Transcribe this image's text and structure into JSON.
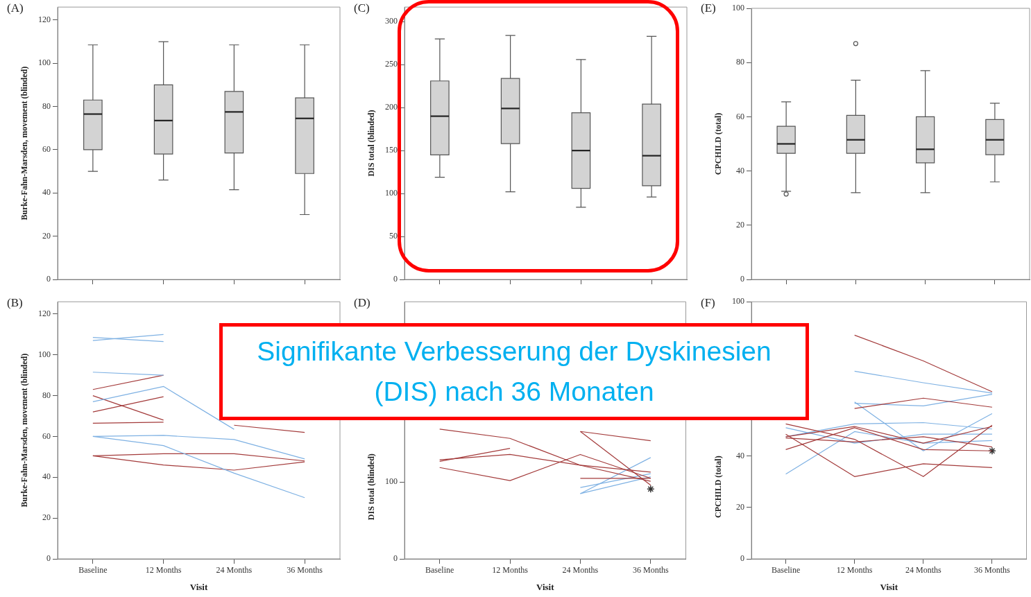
{
  "chart_data": [
    {
      "type": "box",
      "title": "(A)",
      "ylabel": "Burke-Fahn-Marsden, movement (blinded)",
      "categories": [
        null,
        null,
        null,
        null
      ],
      "ylim": [
        0,
        126
      ],
      "yticks": [
        0,
        20,
        40,
        60,
        80,
        100,
        120
      ],
      "tick_labels": "y",
      "series": [
        {
          "color": "#d3d3d3",
          "boxes": [
            {
              "low": 50,
              "q1": 60,
              "median": 76.5,
              "q3": 83,
              "high": 108.5
            },
            {
              "low": 46,
              "q1": 58,
              "median": 73.5,
              "q3": 90,
              "high": 110
            },
            {
              "low": 41.5,
              "q1": 58.5,
              "median": 77.5,
              "q3": 87,
              "high": 108.5
            },
            {
              "low": 30,
              "q1": 49,
              "median": 74.5,
              "q3": 84,
              "high": 108.5
            }
          ]
        }
      ]
    },
    {
      "type": "box",
      "title": "(C)",
      "ylabel": "DIS total (blinded)",
      "categories": [
        null,
        null,
        null,
        null
      ],
      "ylim": [
        0,
        317
      ],
      "yticks": [
        0,
        50,
        100,
        150,
        200,
        250,
        300
      ],
      "tick_labels": "y",
      "series": [
        {
          "color": "#d3d3d3",
          "boxes": [
            {
              "low": 119,
              "q1": 145,
              "median": 190,
              "q3": 231,
              "high": 280
            },
            {
              "low": 102,
              "q1": 158,
              "median": 199,
              "q3": 234,
              "high": 284
            },
            {
              "low": 84,
              "q1": 106,
              "median": 150,
              "q3": 194,
              "high": 256
            },
            {
              "low": 96,
              "q1": 109,
              "median": 144,
              "q3": 204,
              "high": 283
            }
          ]
        }
      ]
    },
    {
      "type": "box",
      "title": "(E)",
      "ylabel": "CPCHILD (total)",
      "categories": [
        null,
        null,
        null,
        null
      ],
      "ylim": [
        0,
        100
      ],
      "yticks": [
        0,
        20,
        40,
        60,
        80,
        100
      ],
      "tick_labels": "y",
      "series": [
        {
          "color": "#d3d3d3",
          "boxes": [
            {
              "low": 32.5,
              "q1": 46.5,
              "median": 50,
              "q3": 56.5,
              "high": 65.5,
              "outliers": [
                31.5
              ]
            },
            {
              "low": 32,
              "q1": 46.5,
              "median": 51.5,
              "q3": 60.5,
              "high": 73.5,
              "outliers": [
                87
              ]
            },
            {
              "low": 32,
              "q1": 43,
              "median": 48,
              "q3": 60,
              "high": 77
            },
            {
              "low": 36,
              "q1": 46,
              "median": 51.5,
              "q3": 59,
              "high": 65
            }
          ]
        }
      ]
    },
    {
      "type": "line",
      "title": "(B)",
      "xlabel": "Visit",
      "ylabel": "Burke-Fahn-Marsden, movement (blinded)",
      "categories": [
        "Baseline",
        "12 Months",
        "24 Months",
        "36 Months"
      ],
      "ylim": [
        0,
        126
      ],
      "yticks": [
        0,
        20,
        40,
        60,
        80,
        100,
        120
      ],
      "series": [
        {
          "color": "#7eb1e3",
          "values": [
            108.5,
            106.5,
            null,
            null
          ]
        },
        {
          "color": "#7eb1e3",
          "values": [
            107,
            110,
            null,
            null
          ]
        },
        {
          "color": "#7eb1e3",
          "values": [
            91.5,
            90,
            null,
            null
          ]
        },
        {
          "color": "#7eb1e3",
          "values": [
            77,
            84.5,
            63.5,
            null
          ]
        },
        {
          "color": "#7eb1e3",
          "values": [
            60,
            60.5,
            58.5,
            49
          ]
        },
        {
          "color": "#7eb1e3",
          "values": [
            60,
            55.5,
            42,
            30
          ]
        },
        {
          "color": "#a33a3a",
          "values": [
            83,
            90,
            null,
            null
          ]
        },
        {
          "color": "#a33a3a",
          "values": [
            80,
            68,
            null,
            null
          ]
        },
        {
          "color": "#a33a3a",
          "values": [
            72,
            79.5,
            null,
            null
          ]
        },
        {
          "color": "#a33a3a",
          "values": [
            66.5,
            67,
            null,
            null
          ]
        },
        {
          "color": "#a33a3a",
          "values": [
            50.5,
            51.5,
            51.5,
            48
          ]
        },
        {
          "color": "#a33a3a",
          "values": [
            50.5,
            46,
            43.5,
            47.5
          ]
        },
        {
          "color": "#a33a3a",
          "values": [
            null,
            null,
            65.5,
            62
          ]
        }
      ]
    },
    {
      "type": "line",
      "title": "(D)",
      "xlabel": "Visit",
      "ylabel": "DIS total (blinded)",
      "categories": [
        "Baseline",
        "12 Months",
        "24 Months",
        "36 Months"
      ],
      "ylim": [
        0,
        335
      ],
      "yticks": [
        0,
        100
      ],
      "annotations": [
        "Signifikante Verbesserung der Dyskinesien (DIS) nach 36 Monaten"
      ],
      "series": [
        {
          "color": "#a33a3a",
          "values": [
            169,
            157,
            122,
            113
          ]
        },
        {
          "color": "#a33a3a",
          "values": [
            129,
            136,
            122,
            101
          ]
        },
        {
          "color": "#a33a3a",
          "values": [
            127,
            144,
            null,
            null
          ]
        },
        {
          "color": "#a33a3a",
          "values": [
            119,
            102,
            136,
            105
          ]
        },
        {
          "color": "#a33a3a",
          "values": [
            null,
            null,
            166,
            154
          ]
        },
        {
          "color": "#a33a3a",
          "values": [
            null,
            null,
            166,
            96
          ]
        },
        {
          "color": "#a33a3a",
          "values": [
            null,
            null,
            105,
            105
          ]
        },
        {
          "color": "#7eb1e3",
          "values": [
            null,
            null,
            85,
            107
          ]
        },
        {
          "color": "#7eb1e3",
          "values": [
            null,
            null,
            93,
            111
          ]
        },
        {
          "color": "#7eb1e3",
          "values": [
            null,
            null,
            85,
            132
          ]
        },
        {
          "type": "scatter",
          "marker": "cross",
          "color": "#333333",
          "x": [
            "36 Months"
          ],
          "values": [
            91
          ]
        }
      ]
    },
    {
      "type": "line",
      "title": "(F)",
      "xlabel": "Visit",
      "ylabel": "CPCHILD (total)",
      "categories": [
        "Baseline",
        "12 Months",
        "24 Months",
        "36 Months"
      ],
      "ylim": [
        0,
        100
      ],
      "yticks": [
        0,
        20,
        40,
        100
      ],
      "series": [
        {
          "color": "#a33a3a",
          "values": [
            null,
            87,
            77,
            65
          ]
        },
        {
          "color": "#a33a3a",
          "values": [
            null,
            58.5,
            62.5,
            59
          ]
        },
        {
          "color": "#a33a3a",
          "values": [
            52.5,
            46.5,
            32,
            52
          ]
        },
        {
          "color": "#a33a3a",
          "values": [
            48.5,
            32,
            37,
            35.5
          ]
        },
        {
          "color": "#a33a3a",
          "values": [
            47.5,
            51.5,
            45,
            51.5
          ]
        },
        {
          "color": "#a33a3a",
          "values": [
            47,
            45.5,
            47.5,
            43.5
          ]
        },
        {
          "color": "#a33a3a",
          "values": [
            42.5,
            51,
            42.5,
            42
          ]
        },
        {
          "color": "#7eb1e3",
          "values": [
            null,
            73,
            68.5,
            64.5
          ]
        },
        {
          "color": "#7eb1e3",
          "values": [
            null,
            60.5,
            59.5,
            64
          ]
        },
        {
          "color": "#7eb1e3",
          "values": [
            51,
            45,
            48.5,
            48.5
          ]
        },
        {
          "color": "#7eb1e3",
          "values": [
            47.5,
            52.5,
            53,
            50.5
          ]
        },
        {
          "color": "#7eb1e3",
          "values": [
            33,
            49.5,
            45,
            46
          ]
        },
        {
          "color": "#7eb1e3",
          "values": [
            null,
            61,
            42,
            56.5
          ]
        },
        {
          "type": "scatter",
          "marker": "cross",
          "color": "#333333",
          "x": [
            "36 Months"
          ],
          "values": [
            42
          ]
        }
      ]
    }
  ]
}
